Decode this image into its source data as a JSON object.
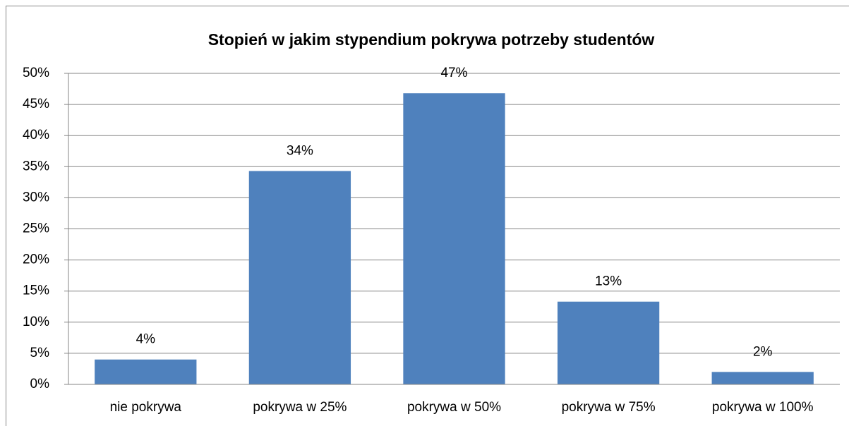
{
  "chart_data": {
    "type": "bar",
    "title": "Stopień w jakim stypendium pokrywa potrzeby studentów",
    "categories": [
      "nie pokrywa",
      "pokrywa w 25%",
      "pokrywa w 50%",
      "pokrywa w 75%",
      "pokrywa w 100%"
    ],
    "values": [
      4,
      34.3,
      46.8,
      13.3,
      2
    ],
    "value_labels": [
      "4%",
      "34%",
      "47%",
      "13%",
      "2%"
    ],
    "color": "#4f81bd",
    "ylim": [
      0,
      50
    ],
    "yticks": [
      {
        "value": 0,
        "label": "0%"
      },
      {
        "value": 5,
        "label": "5%"
      },
      {
        "value": 10,
        "label": "10%"
      },
      {
        "value": 15,
        "label": "15%"
      },
      {
        "value": 20,
        "label": "20%"
      },
      {
        "value": 25,
        "label": "25%"
      },
      {
        "value": 30,
        "label": "30%"
      },
      {
        "value": 35,
        "label": "35%"
      },
      {
        "value": 40,
        "label": "40%"
      },
      {
        "value": 45,
        "label": "45%"
      },
      {
        "value": 50,
        "label": "50%"
      }
    ],
    "grid": true
  }
}
